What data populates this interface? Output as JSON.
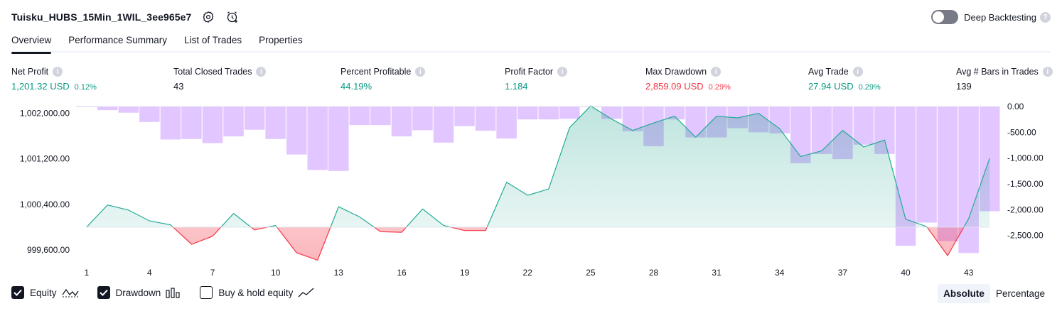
{
  "header": {
    "strategy_name": "Tuisku_HUBS_15Min_1WIL_3ee965e7",
    "settings_icon": "gear-icon",
    "alert_icon": "add-alert-clock-icon",
    "deep_backtesting_label": "Deep Backtesting",
    "deep_backtesting_enabled": false,
    "help_glyph": "?"
  },
  "tabs": [
    {
      "label": "Overview",
      "active": true
    },
    {
      "label": "Performance Summary",
      "active": false
    },
    {
      "label": "List of Trades",
      "active": false
    },
    {
      "label": "Properties",
      "active": false
    }
  ],
  "metrics": [
    {
      "label": "Net Profit",
      "value": "1,201.32 USD",
      "pct": "0.12%",
      "tone": "green"
    },
    {
      "label": "Total Closed Trades",
      "value": "43",
      "pct": "",
      "tone": "neutral"
    },
    {
      "label": "Percent Profitable",
      "value": "44.19%",
      "pct": "",
      "tone": "green"
    },
    {
      "label": "Profit Factor",
      "value": "1.184",
      "pct": "",
      "tone": "green"
    },
    {
      "label": "Max Drawdown",
      "value": "2,859.09 USD",
      "pct": "0.29%",
      "tone": "red"
    },
    {
      "label": "Avg Trade",
      "value": "27.94 USD",
      "pct": "0.29%",
      "tone": "green"
    },
    {
      "label": "Avg # Bars in Trades",
      "value": "139",
      "pct": "",
      "tone": "neutral"
    }
  ],
  "legend": {
    "equity": {
      "label": "Equity",
      "checked": true
    },
    "drawdown": {
      "label": "Drawdown",
      "checked": true
    },
    "buyhold": {
      "label": "Buy & hold equity",
      "checked": false
    }
  },
  "scale_toggle": {
    "absolute": "Absolute",
    "percentage": "Percentage",
    "selected": "absolute"
  },
  "colors": {
    "equity_line": "#22ab94",
    "equity_positive_fill": "#089981",
    "equity_negative_line": "#f23645",
    "drawdown_bar": "#e0c3ff",
    "drawdown_overlap": "#b2b5f2",
    "green": "#089981",
    "red": "#f23645"
  },
  "chart_data": {
    "type": "line+bar",
    "x_ticks": [
      "1",
      "4",
      "7",
      "10",
      "13",
      "16",
      "19",
      "22",
      "25",
      "28",
      "31",
      "34",
      "37",
      "40",
      "43"
    ],
    "left_axis": {
      "ticks": [
        "1,002,000.00",
        "1,001,200.00",
        "1,000,400.00",
        "999,600.00"
      ],
      "range": [
        999400,
        1002120
      ]
    },
    "right_axis": {
      "ticks": [
        "0.00",
        "-500.00",
        "-1,000.00",
        "-1,500.00",
        "-2,000.00",
        "-2,500.00"
      ],
      "range": [
        -3000,
        0
      ]
    },
    "baseline": 1000000,
    "series": [
      {
        "name": "Equity",
        "x": [
          1,
          2,
          3,
          4,
          5,
          6,
          7,
          8,
          9,
          10,
          11,
          12,
          13,
          14,
          15,
          16,
          17,
          18,
          19,
          20,
          21,
          22,
          23,
          24,
          25,
          26,
          27,
          28,
          29,
          30,
          31,
          32,
          33,
          34,
          35,
          36,
          37,
          38,
          39,
          40,
          41,
          42,
          43,
          44
        ],
        "values": [
          1000000,
          1000390,
          1000300,
          1000110,
          1000040,
          999700,
          999840,
          1000240,
          999950,
          1000030,
          999550,
          999420,
          1000360,
          1000180,
          999920,
          999910,
          1000320,
          1000030,
          999940,
          999940,
          1000790,
          1000560,
          1000670,
          1001750,
          1002130,
          1001900,
          1001700,
          1001830,
          1001950,
          1001580,
          1001950,
          1001920,
          1002000,
          1001730,
          1001240,
          1001340,
          1001700,
          1001410,
          1001530,
          1000140,
          1000010,
          999500,
          1000150,
          1001210
        ]
      },
      {
        "name": "Drawdown",
        "x": [
          1,
          2,
          3,
          4,
          5,
          6,
          7,
          8,
          9,
          10,
          11,
          12,
          13,
          14,
          15,
          16,
          17,
          18,
          19,
          20,
          21,
          22,
          23,
          24,
          25,
          26,
          27,
          28,
          29,
          30,
          31,
          32,
          33,
          34,
          35,
          36,
          37,
          38,
          39,
          40,
          41,
          42,
          43,
          44
        ],
        "values": [
          -10,
          -70,
          -120,
          -300,
          -640,
          -630,
          -710,
          -580,
          -450,
          -630,
          -930,
          -1230,
          -1250,
          -360,
          -360,
          -580,
          -460,
          -700,
          -380,
          -470,
          -620,
          -250,
          -250,
          -240,
          -10,
          -240,
          -480,
          -770,
          -250,
          -600,
          -600,
          -420,
          -500,
          -520,
          -1100,
          -920,
          -1020,
          -740,
          -920,
          -2700,
          -2250,
          -2610,
          -2840,
          -2030
        ]
      }
    ]
  }
}
